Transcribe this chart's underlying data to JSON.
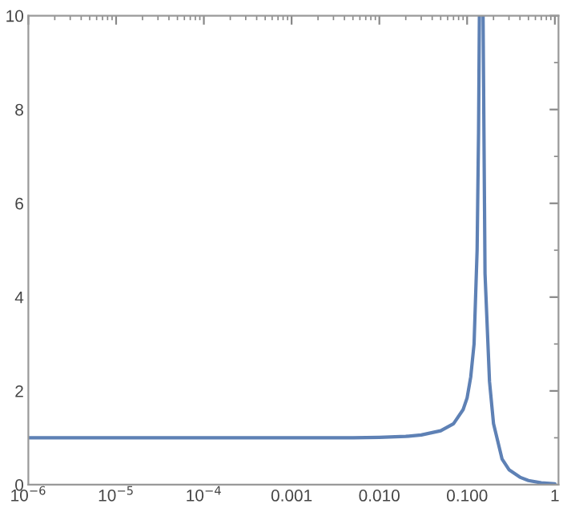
{
  "chart_data": {
    "type": "line",
    "log": "x",
    "grid": false,
    "marker": "none",
    "line_style": "solid",
    "xlim": [
      1e-06,
      1.1
    ],
    "ylim": [
      0,
      10
    ],
    "xticks": [
      {
        "value": 1e-06,
        "label": "10$^{−6}$"
      },
      {
        "value": 1e-05,
        "label": "10$^{−5}$"
      },
      {
        "value": 0.0001,
        "label": "10$^{−4}$"
      },
      {
        "value": 0.001,
        "label": "0.001"
      },
      {
        "value": 0.01,
        "label": "0.010"
      },
      {
        "value": 0.1,
        "label": "0.100"
      },
      1
    ],
    "yticks": [
      0,
      2,
      4,
      6,
      8,
      10
    ],
    "series": [
      {
        "color": "#5e81b5",
        "x": [
          1e-06,
          1e-05,
          0.0001,
          0.001,
          0.005,
          0.01,
          0.02,
          0.03,
          0.05,
          0.07,
          0.09,
          0.1,
          0.11,
          0.12,
          0.13,
          0.135,
          0.138,
          0.145,
          0.152,
          0.16,
          0.18,
          0.2,
          0.25,
          0.3,
          0.4,
          0.5,
          0.7,
          1
        ],
        "values": [
          1,
          1,
          1,
          1,
          1,
          1.01,
          1.03,
          1.06,
          1.15,
          1.3,
          1.6,
          1.85,
          2.3,
          3,
          5,
          7.5,
          10,
          null,
          10,
          4.5,
          2.2,
          1.3,
          0.55,
          0.32,
          0.16,
          0.09,
          0.04,
          0.02
        ]
      }
    ]
  }
}
